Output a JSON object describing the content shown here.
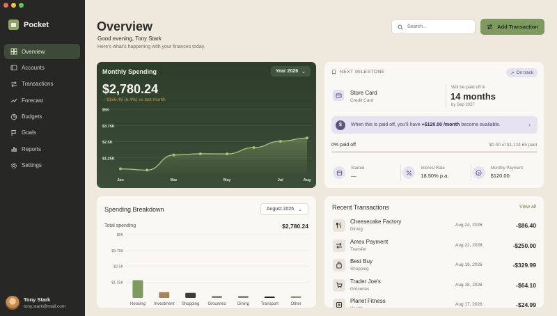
{
  "window": {
    "controls": [
      "close",
      "minimize",
      "zoom"
    ]
  },
  "sidebar": {
    "brand": "Pocket",
    "items": [
      {
        "label": "Overview",
        "icon": "grid-icon",
        "active": true
      },
      {
        "label": "Accounts",
        "icon": "wallet-icon",
        "active": false
      },
      {
        "label": "Transactions",
        "icon": "swap-icon",
        "active": false
      },
      {
        "label": "Forecast",
        "icon": "trend-icon",
        "active": false
      },
      {
        "label": "Budgets",
        "icon": "pie-icon",
        "active": false
      },
      {
        "label": "Goals",
        "icon": "flag-icon",
        "active": false
      },
      {
        "label": "Reports",
        "icon": "bar-chart-icon",
        "active": false
      },
      {
        "label": "Settings",
        "icon": "gear-icon",
        "active": false
      }
    ],
    "user": {
      "name": "Tony Stark",
      "email": "tony.stark@mail.com"
    }
  },
  "header": {
    "title": "Overview",
    "greeting": "Good evening, Tony Stark",
    "subtitle": "Here's what's happening with your finances today.",
    "search_placeholder": "Search...",
    "add_button": "Add Transaction"
  },
  "monthly_spending": {
    "title": "Monthly Spending",
    "period": "Year 2026",
    "amount": "$2,780.24",
    "change": "$166.49 (6.4%) vs last month",
    "accent": "#a9bf7e"
  },
  "milestone": {
    "heading": "NEXT MILESTONE",
    "status": "On track",
    "card_name": "Store Card",
    "card_type": "Credit Card",
    "paid_off_label": "Will be paid off in",
    "months": "14 months",
    "by_date": "by Sep 2027",
    "banner_prefix": "When this is paid off, you'll have",
    "banner_amount": "+$120.00 /month",
    "banner_suffix": "become available.",
    "progress_label": "0% paid off",
    "progress_amount": "$0.00 of $1,124.65 paid",
    "progress": 0,
    "stats": [
      {
        "label": "Started",
        "value": "—",
        "icon": "calendar-icon"
      },
      {
        "label": "Interest Rate",
        "value": "18.50% p.a.",
        "icon": "percent-icon"
      },
      {
        "label": "Monthly Payment",
        "value": "$120.00",
        "icon": "dollar-icon"
      }
    ]
  },
  "breakdown": {
    "title": "Spending Breakdown",
    "period": "August 2026",
    "total_label": "Total spending",
    "total": "$2,780.24"
  },
  "transactions": {
    "title": "Recent Transactions",
    "view_all": "View all",
    "rows": [
      {
        "name": "Cheesecake Factory",
        "category": "Dining",
        "date": "Aug 24, 2026",
        "amount": "-$86.40",
        "icon": "fork-knife-icon"
      },
      {
        "name": "Amex Payment",
        "category": "Transfer",
        "date": "Aug 22, 2026",
        "amount": "-$250.00",
        "icon": "swap-icon"
      },
      {
        "name": "Best Buy",
        "category": "Shopping",
        "date": "Aug 19, 2026",
        "amount": "-$329.99",
        "icon": "shopping-bag-icon"
      },
      {
        "name": "Trader Joe's",
        "category": "Groceries",
        "date": "Aug 18, 2026",
        "amount": "-$64.10",
        "icon": "cart-icon"
      },
      {
        "name": "Planet Fitness",
        "category": "Health",
        "date": "Aug 17, 2026",
        "amount": "-$24.99",
        "icon": "plus-box-icon"
      }
    ]
  },
  "chart_data": [
    {
      "type": "area",
      "x": [
        "Jan",
        "Feb",
        "Mar",
        "Apr",
        "May",
        "Jun",
        "Jul",
        "Aug"
      ],
      "x_tick_labels": [
        "Jan",
        "Mar",
        "May",
        "Jul",
        "Aug"
      ],
      "values": [
        400,
        300,
        1470,
        1560,
        1550,
        2040,
        2530,
        2780
      ],
      "y_ticks": [
        "$1.25K",
        "$2.5K",
        "$3.75K",
        "$5K"
      ],
      "ylim": [
        0,
        5000
      ],
      "grid": true,
      "color": "#a9bf7e"
    },
    {
      "type": "bar",
      "categories": [
        "Housing",
        "Investment",
        "Shopping",
        "Groceries",
        "Dining",
        "Transport",
        "Other"
      ],
      "values": [
        1400,
        450,
        400,
        150,
        150,
        100,
        130
      ],
      "colors": [
        "#7e9a61",
        "#a8835a",
        "#3a3d37",
        "#7c8772",
        "#7c8772",
        "#1f201e",
        "#8a9a72"
      ],
      "y_ticks": [
        "$1.25K",
        "$2.5K",
        "$3.75K",
        "$5K"
      ],
      "ylim": [
        0,
        5000
      ],
      "grid": true
    }
  ]
}
